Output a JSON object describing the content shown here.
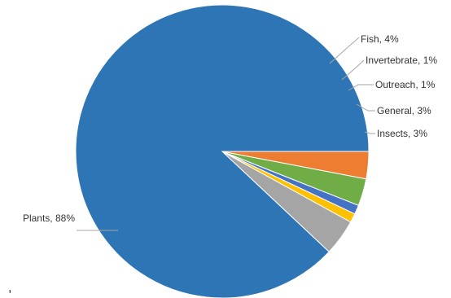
{
  "chart_data": {
    "type": "pie",
    "title": "",
    "start_angle_deg": 0,
    "direction": "clockwise",
    "slices": [
      {
        "label": "Plants",
        "value": 88,
        "display": "Plants, 88%",
        "color": "#2e75b6"
      },
      {
        "label": "Fish",
        "value": 4,
        "display": "Fish, 4%",
        "color": "#a5a5a5"
      },
      {
        "label": "Invertebrate",
        "value": 1,
        "display": "Invertebrate, 1%",
        "color": "#ffc000"
      },
      {
        "label": "Outreach",
        "value": 1,
        "display": "Outreach, 1%",
        "color": "#4472c4"
      },
      {
        "label": "General",
        "value": 3,
        "display": "General, 3%",
        "color": "#70ad47"
      },
      {
        "label": "Insects",
        "value": 3,
        "display": "Insects, 3%",
        "color": "#ed7d31"
      }
    ],
    "legend": "none"
  },
  "stray_mark": ","
}
